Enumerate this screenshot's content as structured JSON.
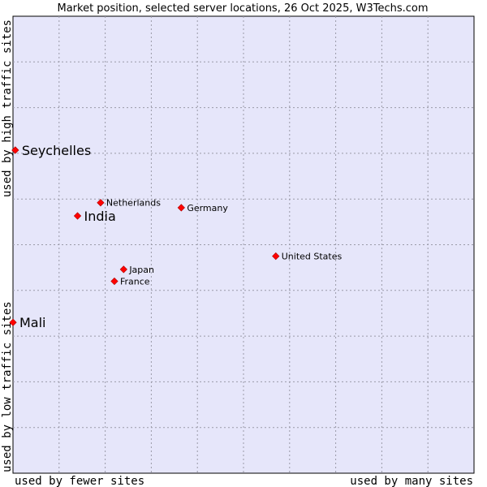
{
  "chart_data": {
    "type": "scatter",
    "title": "Market position, selected server locations, 26 Oct 2025, W3Techs.com",
    "xlabel_left": "used by fewer sites",
    "xlabel_right": "used by many sites",
    "ylabel_top": "used by high traffic sites",
    "ylabel_bottom": "used by low traffic sites",
    "grid": true,
    "xlim": [
      0,
      100
    ],
    "ylim": [
      0,
      100
    ],
    "colors": {
      "plot_bg": "#e6e6fa",
      "marker": "#ff0000",
      "grid": "#9a9aa8"
    },
    "points": [
      {
        "name": "Seychelles",
        "x": 0.5,
        "y": 70.7,
        "emphasis": true
      },
      {
        "name": "Netherlands",
        "x": 19.0,
        "y": 59.2,
        "emphasis": false
      },
      {
        "name": "Germany",
        "x": 36.5,
        "y": 58.1,
        "emphasis": false
      },
      {
        "name": "India",
        "x": 14.0,
        "y": 56.3,
        "emphasis": true
      },
      {
        "name": "United States",
        "x": 57.0,
        "y": 47.5,
        "emphasis": false
      },
      {
        "name": "Japan",
        "x": 24.0,
        "y": 44.6,
        "emphasis": false
      },
      {
        "name": "France",
        "x": 22.0,
        "y": 42.0,
        "emphasis": false
      },
      {
        "name": "Mali",
        "x": 0.0,
        "y": 33.0,
        "emphasis": true
      }
    ]
  }
}
